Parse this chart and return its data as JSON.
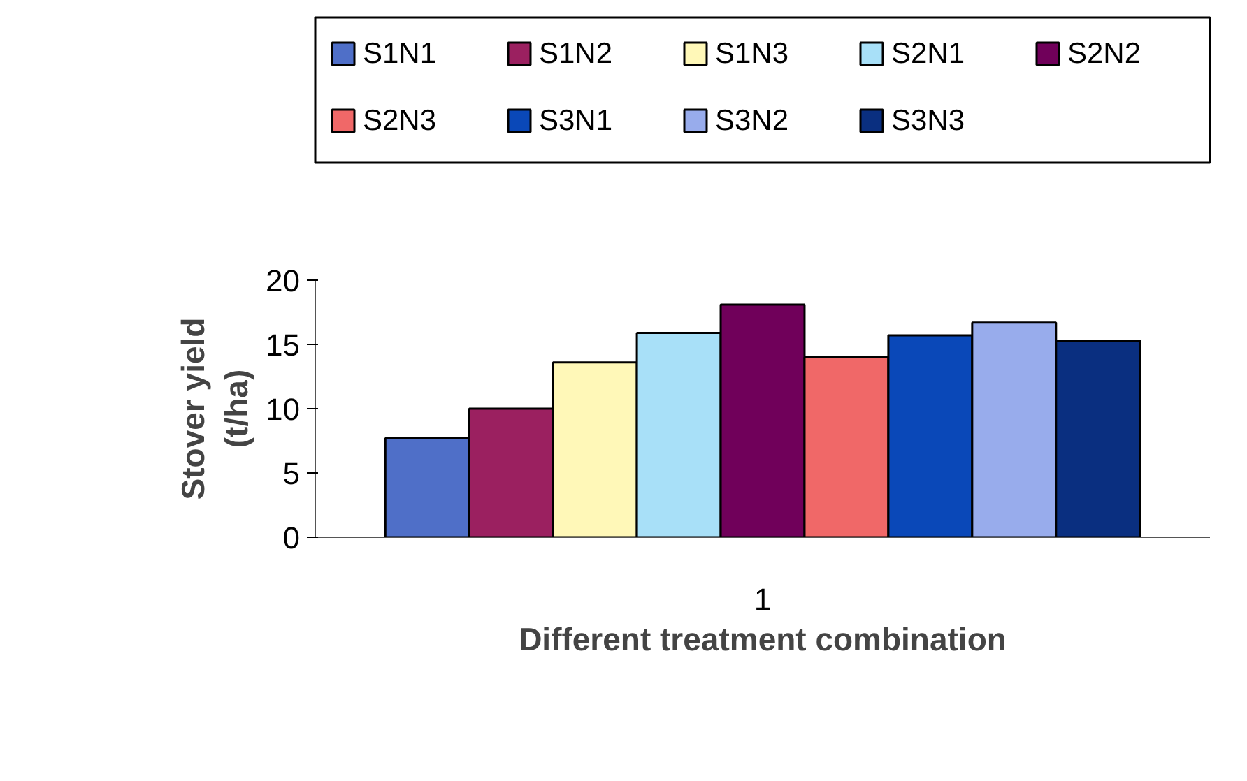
{
  "chart_data": {
    "type": "bar",
    "categories": [
      "1"
    ],
    "xlabel": "Different treatment combination",
    "ylabel": "Stover yield\n(t/ha)",
    "ylim": [
      0,
      20
    ],
    "yticks": [
      0,
      5,
      10,
      15,
      20
    ],
    "grid": false,
    "legend": "top",
    "series": [
      {
        "name": "S1N1",
        "color": "#4f6fc8",
        "values": [
          7.7
        ]
      },
      {
        "name": "S1N2",
        "color": "#9b2060",
        "values": [
          10.0
        ]
      },
      {
        "name": "S1N3",
        "color": "#fff8b8",
        "values": [
          13.6
        ]
      },
      {
        "name": "S2N1",
        "color": "#a8e0f8",
        "values": [
          15.9
        ]
      },
      {
        "name": "S2N2",
        "color": "#70005a",
        "values": [
          18.1
        ]
      },
      {
        "name": "S2N3",
        "color": "#f06868",
        "values": [
          14.0
        ]
      },
      {
        "name": "S3N1",
        "color": "#0a48b8",
        "values": [
          15.7
        ]
      },
      {
        "name": "S3N2",
        "color": "#98acec",
        "values": [
          16.7
        ]
      },
      {
        "name": "S3N3",
        "color": "#0a2f80",
        "values": [
          15.3
        ]
      }
    ]
  }
}
